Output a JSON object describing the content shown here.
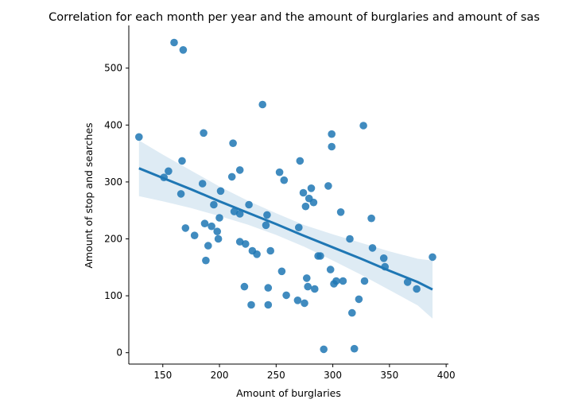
{
  "chart_data": {
    "type": "scatter",
    "title": "Correlation for each month per year and the amount of burglaries and amount of sas",
    "xlabel": "Amount of burglaries",
    "ylabel": "Amount of stop and searches",
    "xlim": [
      120,
      402
    ],
    "ylim": [
      -20,
      575
    ],
    "xticks": [
      150,
      200,
      250,
      300,
      350,
      400
    ],
    "yticks": [
      0,
      100,
      200,
      300,
      400,
      500
    ],
    "grid": false,
    "legend": "none",
    "colors": {
      "points": "#1f77b4",
      "line": "#1f77b4",
      "band": "#1f77b4"
    },
    "points": [
      [
        129,
        379
      ],
      [
        151,
        308
      ],
      [
        155,
        319
      ],
      [
        160,
        545
      ],
      [
        166,
        279
      ],
      [
        167,
        337
      ],
      [
        168,
        532
      ],
      [
        170,
        219
      ],
      [
        178,
        206
      ],
      [
        185,
        297
      ],
      [
        186,
        386
      ],
      [
        187,
        227
      ],
      [
        188,
        162
      ],
      [
        190,
        188
      ],
      [
        193,
        222
      ],
      [
        195,
        260
      ],
      [
        198,
        213
      ],
      [
        199,
        200
      ],
      [
        200,
        237
      ],
      [
        201,
        284
      ],
      [
        211,
        309
      ],
      [
        212,
        368
      ],
      [
        213,
        248
      ],
      [
        218,
        321
      ],
      [
        218,
        195
      ],
      [
        218,
        244
      ],
      [
        222,
        116
      ],
      [
        223,
        191
      ],
      [
        226,
        260
      ],
      [
        228,
        84
      ],
      [
        229,
        179
      ],
      [
        233,
        173
      ],
      [
        238,
        436
      ],
      [
        241,
        224
      ],
      [
        242,
        242
      ],
      [
        243,
        114
      ],
      [
        243,
        84
      ],
      [
        245,
        179
      ],
      [
        253,
        317
      ],
      [
        255,
        143
      ],
      [
        257,
        303
      ],
      [
        259,
        101
      ],
      [
        269,
        92
      ],
      [
        270,
        220
      ],
      [
        271,
        337
      ],
      [
        274,
        281
      ],
      [
        275,
        87
      ],
      [
        276,
        257
      ],
      [
        277,
        131
      ],
      [
        278,
        116
      ],
      [
        279,
        271
      ],
      [
        281,
        289
      ],
      [
        283,
        264
      ],
      [
        284,
        112
      ],
      [
        287,
        170
      ],
      [
        289,
        170
      ],
      [
        292,
        6
      ],
      [
        296,
        293
      ],
      [
        298,
        146
      ],
      [
        299,
        384
      ],
      [
        299,
        362
      ],
      [
        301,
        121
      ],
      [
        303,
        126
      ],
      [
        307,
        247
      ],
      [
        309,
        126
      ],
      [
        315,
        200
      ],
      [
        317,
        70
      ],
      [
        319,
        7
      ],
      [
        323,
        94
      ],
      [
        327,
        399
      ],
      [
        328,
        126
      ],
      [
        334,
        236
      ],
      [
        335,
        184
      ],
      [
        345,
        166
      ],
      [
        346,
        151
      ],
      [
        366,
        124
      ],
      [
        374,
        112
      ],
      [
        388,
        168
      ]
    ],
    "regression": {
      "x": [
        129,
        150,
        175,
        200,
        225,
        250,
        275,
        300,
        325,
        350,
        375,
        388
      ],
      "y": [
        324,
        307,
        287,
        266,
        246,
        226,
        205,
        185,
        165,
        144,
        124,
        111
      ],
      "ci_low": [
        275,
        266,
        254,
        240,
        225,
        207,
        186,
        162,
        137,
        110,
        83,
        60
      ],
      "ci_high": [
        373,
        348,
        320,
        292,
        267,
        245,
        224,
        208,
        193,
        178,
        165,
        162
      ]
    }
  }
}
